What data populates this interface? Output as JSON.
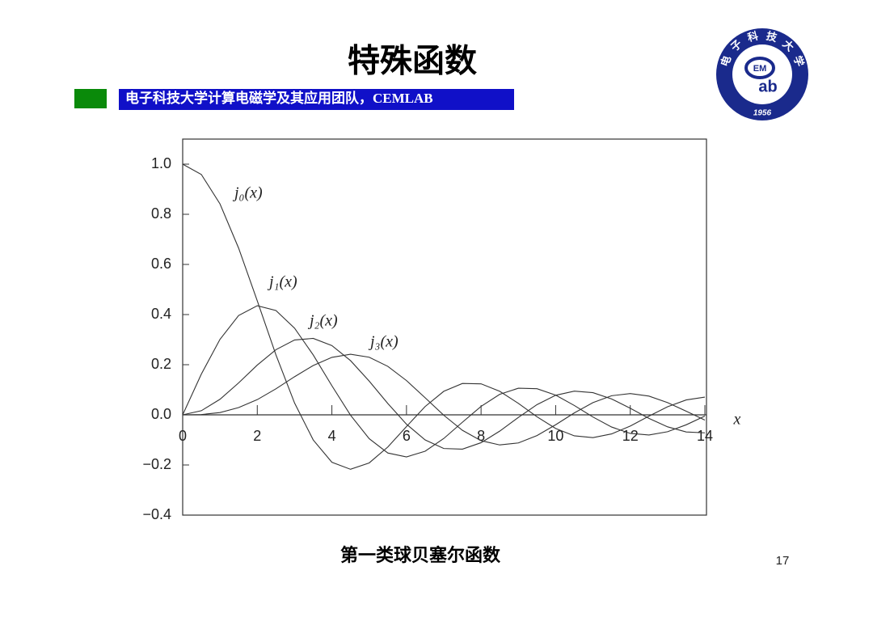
{
  "header": {
    "title": "特殊函数",
    "banner": "电子科技大学计算电磁学及其应用团队，CEMLAB"
  },
  "logo": {
    "ring": [
      "电",
      "子",
      "科",
      "技",
      "大",
      "学"
    ],
    "inner_top": "EM",
    "inner_bottom": "ab",
    "year": "1956"
  },
  "chart_data": {
    "type": "line",
    "x_label": "x",
    "caption": "第一类球贝塞尔函数",
    "xlim": [
      0,
      14
    ],
    "ylim": [
      -0.4,
      1.1
    ],
    "xticks": [
      0,
      2,
      4,
      6,
      8,
      10,
      12,
      14
    ],
    "yticks": [
      {
        "value": -0.4,
        "label": "−0.4"
      },
      {
        "value": -0.2,
        "label": "−0.2"
      },
      {
        "value": 0,
        "label": "0.0"
      },
      {
        "value": 0.2,
        "label": "0.2"
      },
      {
        "value": 0.4,
        "label": "0.4"
      },
      {
        "value": 0.6,
        "label": "0.6"
      },
      {
        "value": 0.8,
        "label": "0.8"
      },
      {
        "value": 1.0,
        "label": "1.0"
      }
    ],
    "x": [
      0,
      0.5,
      1,
      1.5,
      2,
      2.5,
      3,
      3.5,
      4,
      4.5,
      5,
      5.5,
      6,
      6.5,
      7,
      7.5,
      8,
      8.5,
      9,
      9.5,
      10,
      10.5,
      11,
      11.5,
      12,
      12.5,
      13,
      13.5,
      14
    ],
    "series": [
      {
        "name": "j₀(x)",
        "color": "#333333",
        "values": [
          1,
          0.9589,
          0.8415,
          0.665,
          0.4546,
          0.2394,
          0.047,
          -0.1002,
          -0.1892,
          -0.2172,
          -0.1918,
          -0.1283,
          -0.0466,
          0.0331,
          0.0939,
          0.1251,
          0.1237,
          0.0939,
          0.0458,
          -0.0079,
          -0.0544,
          -0.0838,
          -0.0909,
          -0.0761,
          -0.0447,
          -0.0053,
          0.0323,
          0.0595,
          0.0708
        ]
      },
      {
        "name": "j₁(x)",
        "color": "#333333",
        "values": [
          0,
          0.1626,
          0.3012,
          0.3962,
          0.4354,
          0.4162,
          0.3457,
          0.2389,
          0.1161,
          -0.0014,
          -0.0951,
          -0.1522,
          -0.1678,
          -0.1452,
          -0.0943,
          -0.0295,
          0.0337,
          0.0819,
          0.1063,
          0.1041,
          0.0785,
          0.0373,
          -0.0087,
          -0.0486,
          -0.0741,
          -0.0803,
          -0.0673,
          -0.0397,
          -0.0047
        ]
      },
      {
        "name": "j₂(x)",
        "color": "#333333",
        "values": [
          0,
          0.0164,
          0.062,
          0.1274,
          0.1985,
          0.26,
          0.2987,
          0.305,
          0.2763,
          0.2163,
          0.1347,
          0.0453,
          -0.0373,
          -0.1001,
          -0.1343,
          -0.1369,
          -0.1111,
          -0.065,
          -0.0104,
          0.0408,
          0.078,
          0.0945,
          0.0885,
          0.0634,
          0.0262,
          -0.014,
          -0.0478,
          -0.0683,
          -0.0718
        ]
      },
      {
        "name": "j₃(x)",
        "color": "#333333",
        "values": [
          0,
          0.0012,
          0.009,
          0.029,
          0.0607,
          0.1038,
          0.1521,
          0.1968,
          0.2293,
          0.2417,
          0.2298,
          0.1934,
          0.1367,
          0.0682,
          -0.0016,
          -0.0618,
          -0.1031,
          -0.1201,
          -0.1121,
          -0.0826,
          -0.0395,
          0.0077,
          0.0489,
          0.0762,
          0.085,
          0.0747,
          0.0489,
          0.0144,
          -0.0209
        ]
      }
    ]
  },
  "footer": {
    "page_number": "17"
  }
}
